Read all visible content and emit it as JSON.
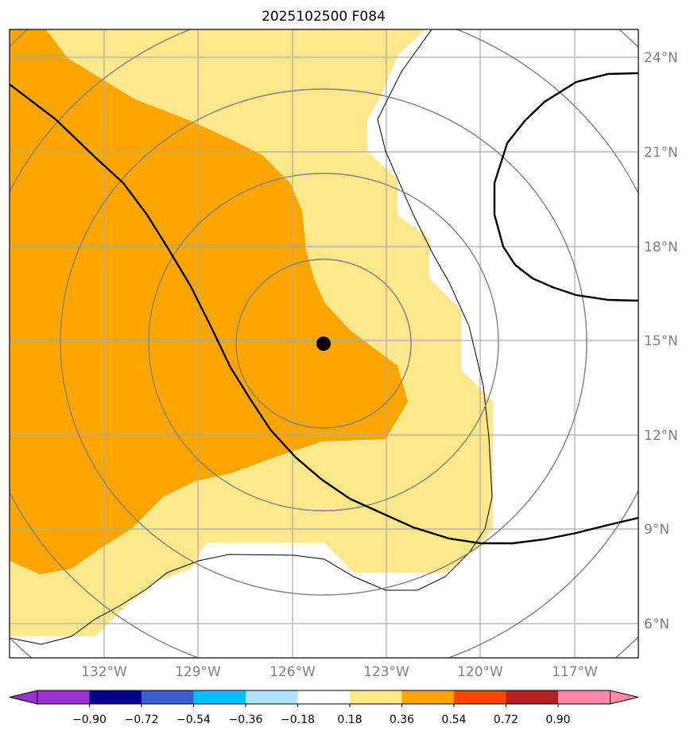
{
  "title": "2025102500 F084",
  "lat_labels": [
    "24°N",
    "21°N",
    "18°N",
    "15°N",
    "12°N",
    "9°N",
    "6°N"
  ],
  "lon_labels": [
    "132°W",
    "129°W",
    "126°W",
    "123°W",
    "120°W",
    "117°W"
  ],
  "colorbar": {
    "ticks": [
      "−0.90",
      "−0.72",
      "−0.54",
      "−0.36",
      "−0.18",
      "0.18",
      "0.36",
      "0.54",
      "0.72",
      "0.90"
    ],
    "colors": {
      "under": "#9932CC",
      "bins": [
        "#00008B",
        "#3A5FCD",
        "#00BFFF",
        "#B0E2FF",
        "#FFFFFF",
        "#FFE88C",
        "#FFA500",
        "#FF4500",
        "#B22222"
      ],
      "over": "#FF88AA"
    }
  },
  "storm_center_marker": "filled black dot"
}
